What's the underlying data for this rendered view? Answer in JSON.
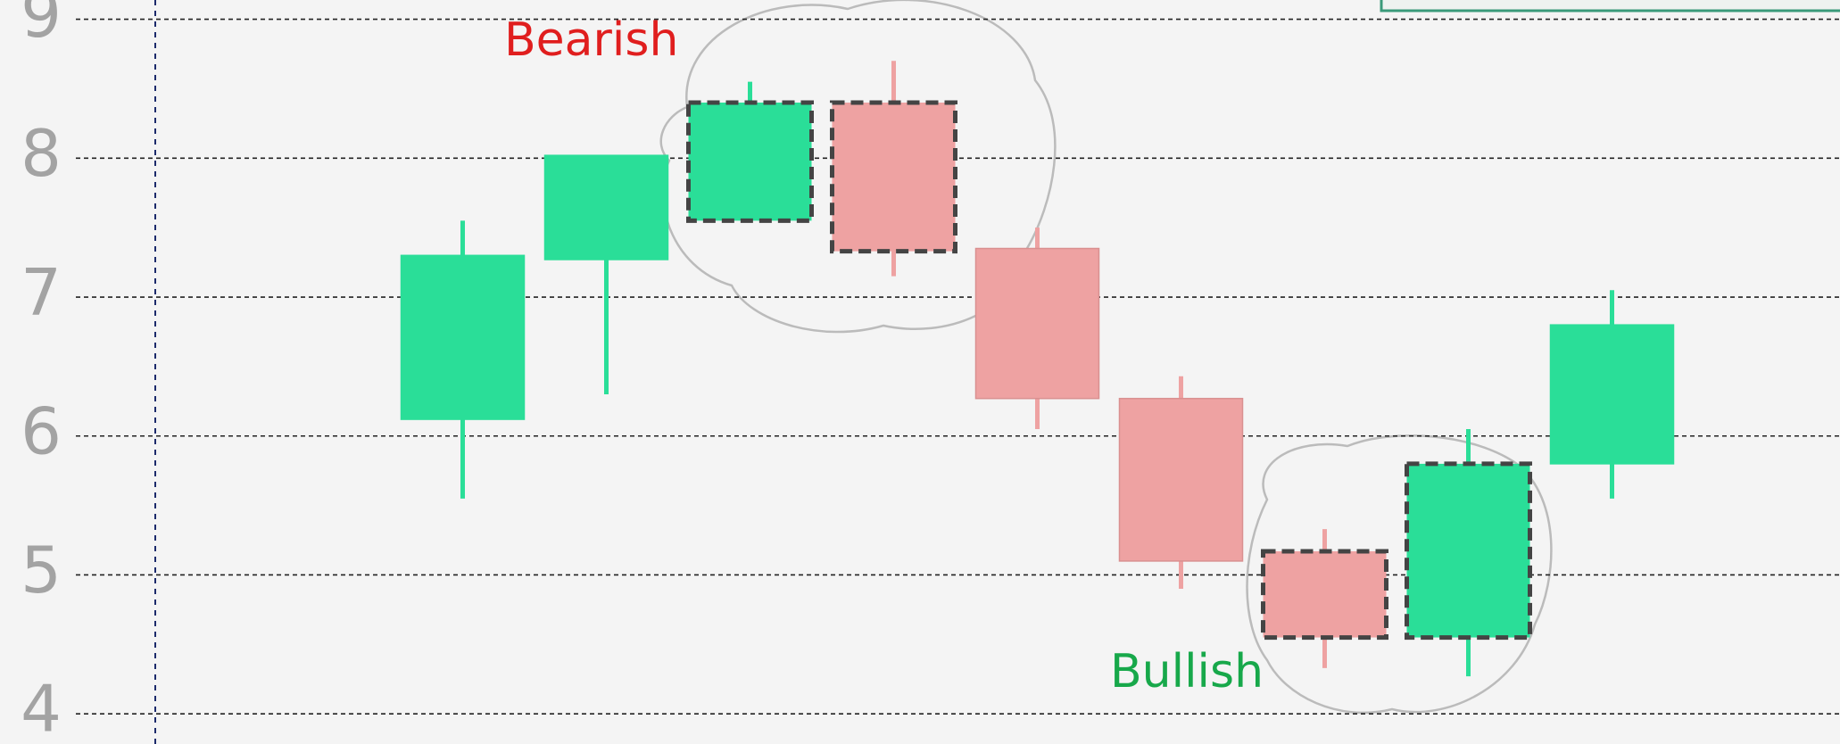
{
  "chart_data": {
    "type": "candlestick",
    "annotations": [
      "Bearish",
      "Bullish"
    ],
    "annotation_colors": [
      "#e01e1e",
      "#17a84a"
    ],
    "open": [
      6.12,
      7.27,
      7.55,
      8.4,
      7.35,
      6.27,
      5.17,
      4.55,
      5.8
    ],
    "high": [
      7.55,
      8.02,
      8.55,
      8.7,
      7.5,
      6.43,
      5.33,
      6.05,
      7.05
    ],
    "low": [
      5.55,
      6.3,
      7.55,
      7.15,
      6.05,
      4.9,
      4.33,
      4.27,
      5.55
    ],
    "close": [
      7.3,
      8.02,
      8.4,
      7.33,
      6.27,
      5.1,
      4.55,
      5.8,
      6.8
    ],
    "up_color": "#2ade98",
    "down_color": "#eea2a2",
    "dashed_outline": [
      2,
      3,
      6,
      7
    ],
    "ylim": [
      3.95,
      9.1
    ],
    "yticks": [
      4,
      5,
      6,
      7,
      8,
      9
    ],
    "grid": true
  }
}
